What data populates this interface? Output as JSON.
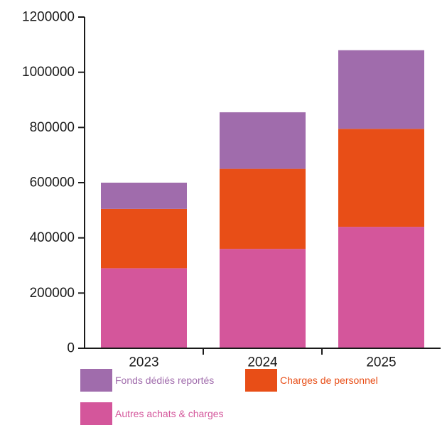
{
  "chart_data": {
    "type": "bar",
    "stacked": true,
    "title": "",
    "xlabel": "",
    "ylabel": "",
    "categories": [
      "2023",
      "2024",
      "2025"
    ],
    "ylim": [
      0,
      1200000
    ],
    "yticks": [
      "0",
      "200000",
      "400000",
      "600000",
      "800000",
      "1000000",
      "1200000"
    ],
    "series": [
      {
        "name": "Autres achats & charges",
        "color": "#d4569b",
        "values": [
          290000,
          360000,
          440000
        ]
      },
      {
        "name": "Charges de personnel",
        "color": "#e84e17",
        "values": [
          215000,
          290000,
          355000
        ]
      },
      {
        "name": "Fonds dédiés reportés",
        "color": "#a06cac",
        "values": [
          95000,
          205000,
          285000
        ]
      }
    ],
    "grid": false,
    "legend_placement": "bottom"
  }
}
